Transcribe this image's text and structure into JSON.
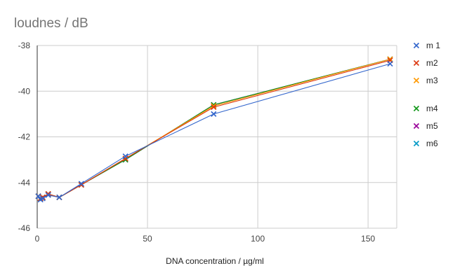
{
  "chart_data": {
    "type": "line",
    "title": "loudnes / dB",
    "xlabel": "DNA  concentration / µg/ml",
    "ylabel": "",
    "xlim": [
      0,
      163
    ],
    "ylim": [
      -46,
      -38
    ],
    "x_ticks": [
      0,
      50,
      100,
      150
    ],
    "y_ticks": [
      -38,
      -40,
      -42,
      -44,
      -46
    ],
    "grid": true,
    "marker": "x",
    "legend_position": "right",
    "series": [
      {
        "name": "m 1",
        "color": "#3366cc",
        "points": [
          [
            0.5,
            -44.6
          ],
          [
            1.5,
            -44.75
          ],
          [
            2.5,
            -44.7
          ],
          [
            5,
            -44.55
          ],
          [
            10,
            -44.65
          ],
          [
            20,
            -44.05
          ],
          [
            40,
            -42.85
          ],
          [
            80,
            -41
          ],
          [
            160,
            -38.8
          ]
        ]
      },
      {
        "name": "m2",
        "color": "#dc3912",
        "points": [
          [
            0.5,
            -44.6
          ],
          [
            1.5,
            -44.7
          ],
          [
            2.5,
            -44.65
          ],
          [
            5,
            -44.5
          ],
          [
            10,
            -44.65
          ],
          [
            20,
            -44.1
          ],
          [
            40,
            -42.95
          ],
          [
            80,
            -40.7
          ],
          [
            160,
            -38.65
          ]
        ]
      },
      {
        "name": "m3",
        "color": "#ff9900",
        "points": [
          [
            0.5,
            -44.6
          ],
          [
            1.5,
            -44.7
          ],
          [
            2.5,
            -44.65
          ],
          [
            5,
            -44.5
          ],
          [
            10,
            -44.65
          ],
          [
            20,
            -44.1
          ],
          [
            40,
            -42.95
          ],
          [
            80,
            -40.65
          ],
          [
            160,
            -38.6
          ]
        ]
      },
      {
        "name": "m4",
        "color": "#109618",
        "points": [
          [
            0.5,
            -44.6
          ],
          [
            1.5,
            -44.7
          ],
          [
            2.5,
            -44.65
          ],
          [
            5,
            -44.5
          ],
          [
            10,
            -44.65
          ],
          [
            20,
            -44.1
          ],
          [
            40,
            -43
          ],
          [
            80,
            -40.6
          ],
          [
            160,
            -38.6
          ]
        ]
      },
      {
        "name": "m5",
        "color": "#990099",
        "points": [
          [
            0.5,
            -44.6
          ],
          [
            1.5,
            -44.7
          ],
          [
            2.5,
            -44.65
          ],
          [
            5,
            -44.5
          ],
          [
            10,
            -44.65
          ],
          [
            20,
            -44.1
          ],
          [
            40,
            -43
          ],
          [
            80,
            -40.6
          ],
          [
            160,
            -38.6
          ]
        ]
      },
      {
        "name": "m6",
        "color": "#0099c6",
        "points": [
          [
            0.5,
            -44.6
          ],
          [
            1.5,
            -44.7
          ],
          [
            2.5,
            -44.65
          ],
          [
            5,
            -44.5
          ],
          [
            10,
            -44.65
          ],
          [
            20,
            -44.1
          ],
          [
            40,
            -43
          ],
          [
            80,
            -40.6
          ],
          [
            160,
            -38.6
          ]
        ]
      }
    ]
  }
}
